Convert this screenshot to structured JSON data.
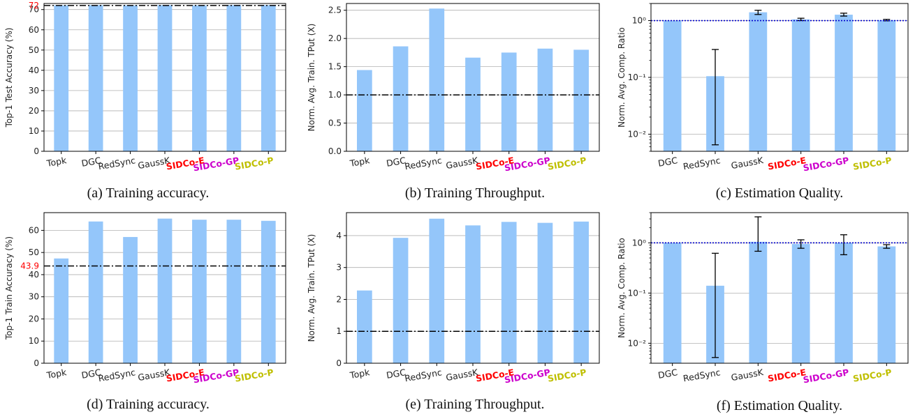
{
  "colors": {
    "bar": "#94c6fa",
    "sidco_e": "#ff0000",
    "sidco_gp": "#cc00cc",
    "sidco_p": "#bfbf00",
    "reference_dashdot": "#000000",
    "reference_dotted": "#0000cc",
    "reference_label": "#ff0000"
  },
  "chart_data": [
    {
      "id": "a",
      "type": "bar",
      "caption": "(a) Training accuracy.",
      "ylabel": "Top-1 Test Accuracy (%)",
      "categories": [
        "Topk",
        "DGC",
        "RedSync",
        "GaussK",
        "SIDCo-E",
        "SIDCo-GP",
        "SIDCo-P"
      ],
      "category_colors": [
        "",
        "",
        "",
        "",
        "#ff0000",
        "#cc00cc",
        "#bfbf00"
      ],
      "values": [
        72.1,
        72.2,
        72.1,
        72.2,
        72.1,
        72.2,
        72.2
      ],
      "ylim": [
        0,
        73
      ],
      "yticks": [
        0,
        10,
        20,
        30,
        40,
        50,
        60,
        70
      ],
      "ytick_labels": [
        "0",
        "10",
        "20",
        "30",
        "40",
        "50",
        "60",
        "70"
      ],
      "reference_line": {
        "value": 72,
        "style": "dashdot",
        "label": "72"
      },
      "grid": "y"
    },
    {
      "id": "b",
      "type": "bar",
      "caption": "(b) Training Throughput.",
      "ylabel": "Norm. Avg. Train. TPut (X)",
      "categories": [
        "Topk",
        "DGC",
        "RedSync",
        "GaussK",
        "SIDCo-E",
        "SIDCo-GP",
        "SIDCo-P"
      ],
      "category_colors": [
        "",
        "",
        "",
        "",
        "#ff0000",
        "#cc00cc",
        "#bfbf00"
      ],
      "values": [
        1.44,
        1.86,
        2.53,
        1.66,
        1.75,
        1.82,
        1.8
      ],
      "ylim": [
        0,
        2.62
      ],
      "yticks": [
        0,
        0.5,
        1.0,
        1.5,
        2.0,
        2.5
      ],
      "ytick_labels": [
        "0.0",
        "0.5",
        "1.0",
        "1.5",
        "2.0",
        "2.5"
      ],
      "reference_line": {
        "value": 1.0,
        "style": "dashdot"
      },
      "grid": "y"
    },
    {
      "id": "c",
      "type": "bar",
      "caption": "(c) Estimation Quality.",
      "ylabel": "Norm. Avg. Comp. Ratio",
      "yscale": "log",
      "categories": [
        "DGC",
        "RedSync",
        "GaussK",
        "SIDCo-E",
        "SIDCo-GP",
        "SIDCo-P"
      ],
      "category_colors": [
        "",
        "",
        "",
        "#ff0000",
        "#cc00cc",
        "#bfbf00"
      ],
      "values": [
        1.0,
        0.105,
        1.4,
        1.05,
        1.27,
        1.02
      ],
      "error_low": [
        1.0,
        0.0065,
        1.28,
        1.0,
        1.2,
        0.99
      ],
      "error_high": [
        1.0,
        0.31,
        1.52,
        1.1,
        1.35,
        1.05
      ],
      "ylim": [
        0.005,
        2.0
      ],
      "yticks": [
        0.01,
        0.1,
        1.0
      ],
      "ytick_labels": [
        "10⁻²",
        "10⁻¹",
        "10⁰"
      ],
      "reference_line": {
        "value": 1.0,
        "style": "dotted"
      },
      "grid": "y"
    },
    {
      "id": "d",
      "type": "bar",
      "caption": "(d) Training accuracy.",
      "ylabel": "Top-1 Train Accuracy (%)",
      "categories": [
        "Topk",
        "DGC",
        "RedSync",
        "GaussK",
        "SIDCo-E",
        "SIDCo-GP",
        "SIDCo-P"
      ],
      "category_colors": [
        "",
        "",
        "",
        "",
        "#ff0000",
        "#cc00cc",
        "#bfbf00"
      ],
      "values": [
        47.3,
        64.0,
        57.0,
        65.3,
        64.8,
        64.8,
        64.3
      ],
      "ylim": [
        0,
        68
      ],
      "yticks": [
        0,
        10,
        20,
        30,
        40,
        50,
        60
      ],
      "ytick_labels": [
        "0",
        "10",
        "20",
        "30",
        "40",
        "50",
        "60"
      ],
      "reference_line": {
        "value": 43.9,
        "style": "dashdot",
        "label": "43.9"
      },
      "grid": "y"
    },
    {
      "id": "e",
      "type": "bar",
      "caption": "(e) Training Throughput.",
      "ylabel": "Norm. Avg. Train. TPut (X)",
      "categories": [
        "Topk",
        "DGC",
        "RedSync",
        "GaussK",
        "SIDCo-E",
        "SIDCo-GP",
        "SIDCo-P"
      ],
      "category_colors": [
        "",
        "",
        "",
        "",
        "#ff0000",
        "#cc00cc",
        "#bfbf00"
      ],
      "values": [
        2.28,
        3.93,
        4.53,
        4.32,
        4.43,
        4.4,
        4.44
      ],
      "ylim": [
        0,
        4.72
      ],
      "yticks": [
        0,
        1,
        2,
        3,
        4
      ],
      "ytick_labels": [
        "0",
        "1",
        "2",
        "3",
        "4"
      ],
      "reference_line": {
        "value": 1.0,
        "style": "dashdot"
      },
      "grid": "y"
    },
    {
      "id": "f",
      "type": "bar",
      "caption": "(f) Estimation Quality.",
      "ylabel": "Norm. Avg. Comp. Ratio",
      "yscale": "log",
      "categories": [
        "DGC",
        "RedSync",
        "GaussK",
        "SIDCo-E",
        "SIDCo-GP",
        "SIDCo-P"
      ],
      "category_colors": [
        "",
        "",
        "",
        "#ff0000",
        "#cc00cc",
        "#bfbf00"
      ],
      "values": [
        1.0,
        0.14,
        1.05,
        0.95,
        1.0,
        0.85
      ],
      "error_low": [
        1.0,
        0.0052,
        0.68,
        0.78,
        0.58,
        0.78
      ],
      "error_high": [
        1.0,
        0.62,
        3.3,
        1.15,
        1.45,
        0.92
      ],
      "ylim": [
        0.004,
        4.0
      ],
      "yticks": [
        0.01,
        0.1,
        1.0
      ],
      "ytick_labels": [
        "10⁻²",
        "10⁻¹",
        "10⁰"
      ],
      "reference_line": {
        "value": 1.0,
        "style": "dotted"
      },
      "grid": "y"
    }
  ]
}
